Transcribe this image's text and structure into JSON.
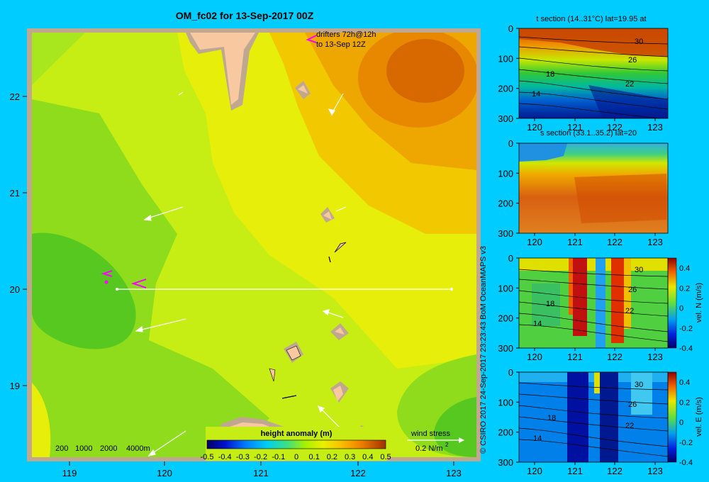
{
  "title": "OM_fc02 for 13-Sep-2017 00Z",
  "credit": "© CSIRO 2017   24-Sep-2017 23:23:43 BoM OceanMAPS v3",
  "colors": {
    "background": "#00ccff",
    "frame": "#c0a890",
    "land": "#f8c8a0",
    "drifter": "#ff00ff",
    "vector": "#ffffff"
  },
  "main_map": {
    "x_ticks": [
      "119",
      "120",
      "121",
      "122",
      "123"
    ],
    "y_ticks": [
      "22",
      "21",
      "20",
      "19"
    ],
    "drifter_label_1": "drifters 72h@12h",
    "drifter_label_2": "to 13-Sep 12Z",
    "depth_legend": [
      "200",
      "1000",
      "2000",
      "4000m"
    ],
    "colorbar_title": "height anomaly (m)",
    "colorbar_ticks": [
      "-0.5",
      "-0.4",
      "-0.3",
      "-0.2",
      "-0.1",
      "0",
      "0.1",
      "0.2",
      "0.3",
      "0.4",
      "0.5"
    ],
    "wind_label": "wind stress",
    "wind_scale_label": "0.2 N/m",
    "wind_scale_sup": "2"
  },
  "panels": [
    {
      "title": "t section (14..31°C) lat=19.95 at",
      "x_ticks": [
        "120",
        "121",
        "122",
        "123"
      ],
      "y_ticks": [
        "0",
        "100",
        "200",
        "300"
      ],
      "contour_labels": [
        "30",
        "26",
        "18",
        "22",
        "14"
      ]
    },
    {
      "title": "s section (33.1..35.2) lat=20",
      "x_ticks": [
        "120",
        "121",
        "122",
        "123"
      ],
      "y_ticks": [
        "0",
        "100",
        "200",
        "300"
      ],
      "contour_labels": []
    },
    {
      "title": "",
      "x_ticks": [
        "120",
        "121",
        "122",
        "123"
      ],
      "y_ticks": [
        "0",
        "100",
        "200",
        "300"
      ],
      "contour_labels": [
        "30",
        "26",
        "18",
        "22",
        "14"
      ],
      "colorbar_label": "vel. N (m/s)",
      "colorbar_ticks": [
        "0.4",
        "0.2",
        "0",
        "-0.2",
        "-0.4"
      ]
    },
    {
      "title": "",
      "x_ticks": [
        "120",
        "121",
        "122",
        "123"
      ],
      "y_ticks": [
        "0",
        "100",
        "200",
        "300"
      ],
      "contour_labels": [
        "30",
        "26",
        "18",
        "22",
        "14"
      ],
      "colorbar_label": "vel. E (m/s)",
      "colorbar_ticks": [
        "0.4",
        "0.2",
        "0",
        "-0.2",
        "-0.4"
      ]
    }
  ],
  "chart_data": {
    "type": "heatmap",
    "title": "OM_fc02 for 13-Sep-2017 00Z",
    "variable": "height anomaly (m)",
    "x_range": [
      118.5,
      123.5
    ],
    "y_range": [
      18.3,
      22.7
    ],
    "color_range": [
      -0.5,
      0.5
    ],
    "section_latitude": 20,
    "section_x_range": [
      119.5,
      123.2
    ],
    "sections": [
      {
        "name": "t section",
        "range": "14..31°C",
        "depth_range": [
          0,
          300
        ]
      },
      {
        "name": "s section",
        "range": "33.1..35.2",
        "depth_range": [
          0,
          300
        ]
      },
      {
        "name": "vel. N",
        "units": "m/s",
        "color_range": [
          -0.4,
          0.4
        ],
        "depth_range": [
          0,
          300
        ]
      },
      {
        "name": "vel. E",
        "units": "m/s",
        "color_range": [
          -0.4,
          0.4
        ],
        "depth_range": [
          0,
          300
        ]
      }
    ]
  }
}
